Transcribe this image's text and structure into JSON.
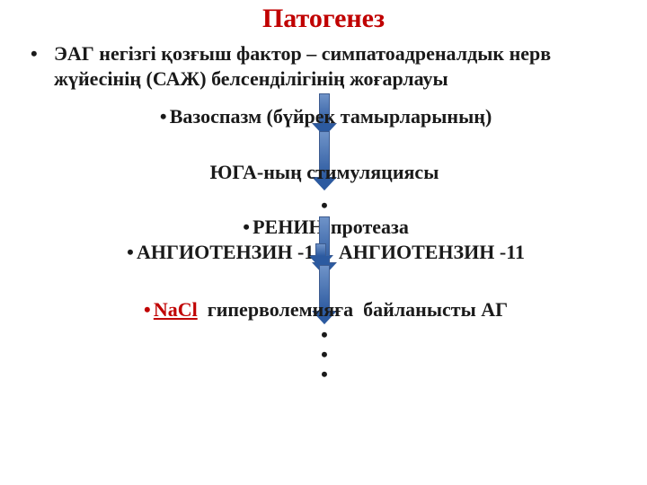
{
  "background_color": "#ffffff",
  "text_color": "#1a1a1a",
  "bullet_color": "#222222",
  "title": {
    "text": "Патогенез",
    "color": "#c00000",
    "fontsize": 30
  },
  "body_fontsize": 22,
  "lvl1": {
    "text": "ЭАГ негізгі қозғыш фактор – симпатоадреналдык нерв жүйесінің (САЖ) белсенділігінің жоғарлауы"
  },
  "steps": {
    "s1": "Вазоспазм (бүйрек тамырларының)",
    "s2": "ЮГА-ның стимуляциясы",
    "s3": "РЕНИН-протеаза",
    "s4": "АНГИОТЕНЗИН -1     АНГИОТЕНЗИН -11",
    "s5_prefix": "NaCl",
    "s5_rest": "  гиперволемияға  байланысты АГ",
    "s5_color": "#c00000"
  },
  "arrow": {
    "fill_top": "#6f93c8",
    "fill_bottom": "#2c5aa0",
    "stroke": "#3d5b8f",
    "shaft_width": 12,
    "head_width": 26,
    "lengths": {
      "a1": 34,
      "a2": 52,
      "a3": 52,
      "a4": 14,
      "a5": 52
    },
    "head_height": 14
  }
}
